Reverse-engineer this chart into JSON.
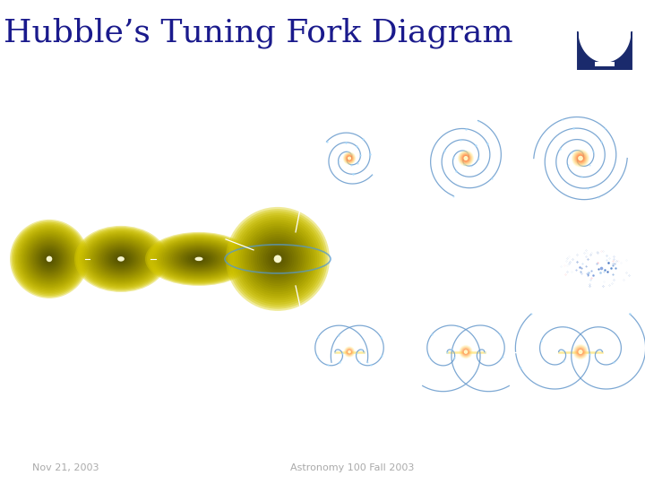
{
  "title": "Hubble’s Tuning Fork Diagram",
  "title_color": "#1a1a8c",
  "title_fontsize": 26,
  "title_font": "serif",
  "bg_color": "#ffffff",
  "footer_left": "Nov 21, 2003",
  "footer_center": "Astronomy 100 Fall 2003",
  "footer_color": "#aaaaaa",
  "footer_fontsize": 8,
  "main_bg": "#1c1c1c",
  "text_color": "#ffffff",
  "label_fontsize": 8,
  "logo_bg": "#1a2a6c"
}
